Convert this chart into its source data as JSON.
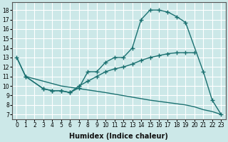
{
  "xlabel": "Humidex (Indice chaleur)",
  "bg_color": "#cce8e8",
  "grid_color": "#ffffff",
  "line_color": "#1a7070",
  "line_width": 1.0,
  "marker": "+",
  "marker_size": 4,
  "marker_lw": 1.0,
  "xlim": [
    -0.5,
    23.5
  ],
  "ylim": [
    6.5,
    18.8
  ],
  "yticks": [
    7,
    8,
    9,
    10,
    11,
    12,
    13,
    14,
    15,
    16,
    17,
    18
  ],
  "xticks": [
    0,
    1,
    2,
    3,
    4,
    5,
    6,
    7,
    8,
    9,
    10,
    11,
    12,
    13,
    14,
    15,
    16,
    17,
    18,
    19,
    20,
    21,
    22,
    23
  ],
  "line1_x": [
    0,
    1,
    3,
    4,
    5,
    6,
    7,
    8,
    9,
    10,
    11,
    12,
    13,
    14,
    15,
    16,
    17,
    18,
    19,
    21,
    22,
    23
  ],
  "line1_y": [
    13,
    11,
    9.7,
    9.5,
    9.5,
    9.3,
    9.8,
    11.5,
    11.5,
    12.5,
    13.0,
    13.0,
    14.0,
    17.0,
    18.0,
    18.0,
    17.8,
    17.3,
    16.7,
    11.5,
    8.5,
    7.0
  ],
  "line2_x": [
    1,
    3,
    4,
    5,
    6,
    7,
    8,
    9,
    10,
    11,
    12,
    13,
    14,
    15,
    16,
    17,
    18,
    19,
    20
  ],
  "line2_y": [
    11,
    9.7,
    9.5,
    9.5,
    9.3,
    10.0,
    10.5,
    11.0,
    11.5,
    11.8,
    12.0,
    12.3,
    12.7,
    13.0,
    13.2,
    13.4,
    13.5,
    13.5,
    13.5
  ],
  "line3_x": [
    0,
    1,
    5,
    10,
    15,
    19,
    20,
    21,
    22,
    23
  ],
  "line3_y": [
    13,
    11.0,
    10.0,
    9.3,
    8.5,
    8.0,
    7.8,
    7.5,
    7.3,
    7.0
  ]
}
